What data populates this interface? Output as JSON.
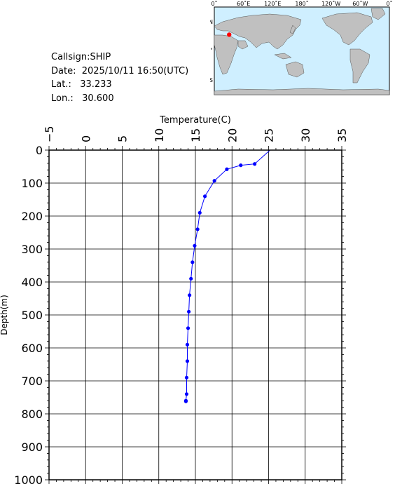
{
  "info": {
    "callsign": "Callsign:SHIP",
    "date": "Date:  2025/10/11 16:50(UTC)",
    "lat": "Lat.:   33.233",
    "lon": "Lon.:   30.600"
  },
  "map": {
    "lon_labels": [
      "0˚",
      "60˚E",
      "120˚E",
      "180˚",
      "120˚W",
      "60˚W",
      "0˚"
    ],
    "lat_labels": [
      "60˚N",
      "0˚",
      "60˚S"
    ],
    "ocean_color": "#cfefff",
    "land_color": "#c0c0c0",
    "marker_color": "#ff0000",
    "marker": {
      "lon": 30.6,
      "lat": 33.233
    }
  },
  "chart_data": {
    "type": "line",
    "title": "",
    "xlabel": "Temperature(C)",
    "ylabel": "Depth(m)",
    "xlim": [
      -5,
      35
    ],
    "ylim": [
      0,
      1000
    ],
    "y_inverted": true,
    "x_ticks": [
      -5,
      0,
      5,
      10,
      15,
      20,
      25,
      30,
      35
    ],
    "y_ticks": [
      0,
      100,
      200,
      300,
      400,
      500,
      600,
      700,
      800,
      900,
      1000
    ],
    "x_tick_labels": [
      "−5",
      "0",
      "5",
      "10",
      "15",
      "20",
      "25",
      "30",
      "35"
    ],
    "y_tick_labels": [
      "0",
      "100",
      "200",
      "300",
      "400",
      "500",
      "600",
      "700",
      "800",
      "900",
      "1000"
    ],
    "grid": true,
    "line_color": "#0000ff",
    "series": [
      {
        "x": [
          25.2,
          23.1,
          21.2,
          19.3,
          17.6,
          16.3,
          15.6,
          15.3,
          14.9,
          14.6,
          14.4,
          14.2,
          14.1,
          14.0,
          13.9,
          13.9,
          13.8,
          13.8,
          13.7,
          13.7
        ],
        "y": [
          0,
          42,
          46,
          58,
          93,
          140,
          190,
          240,
          290,
          340,
          390,
          440,
          490,
          540,
          590,
          640,
          690,
          740,
          760,
          762
        ]
      }
    ]
  }
}
